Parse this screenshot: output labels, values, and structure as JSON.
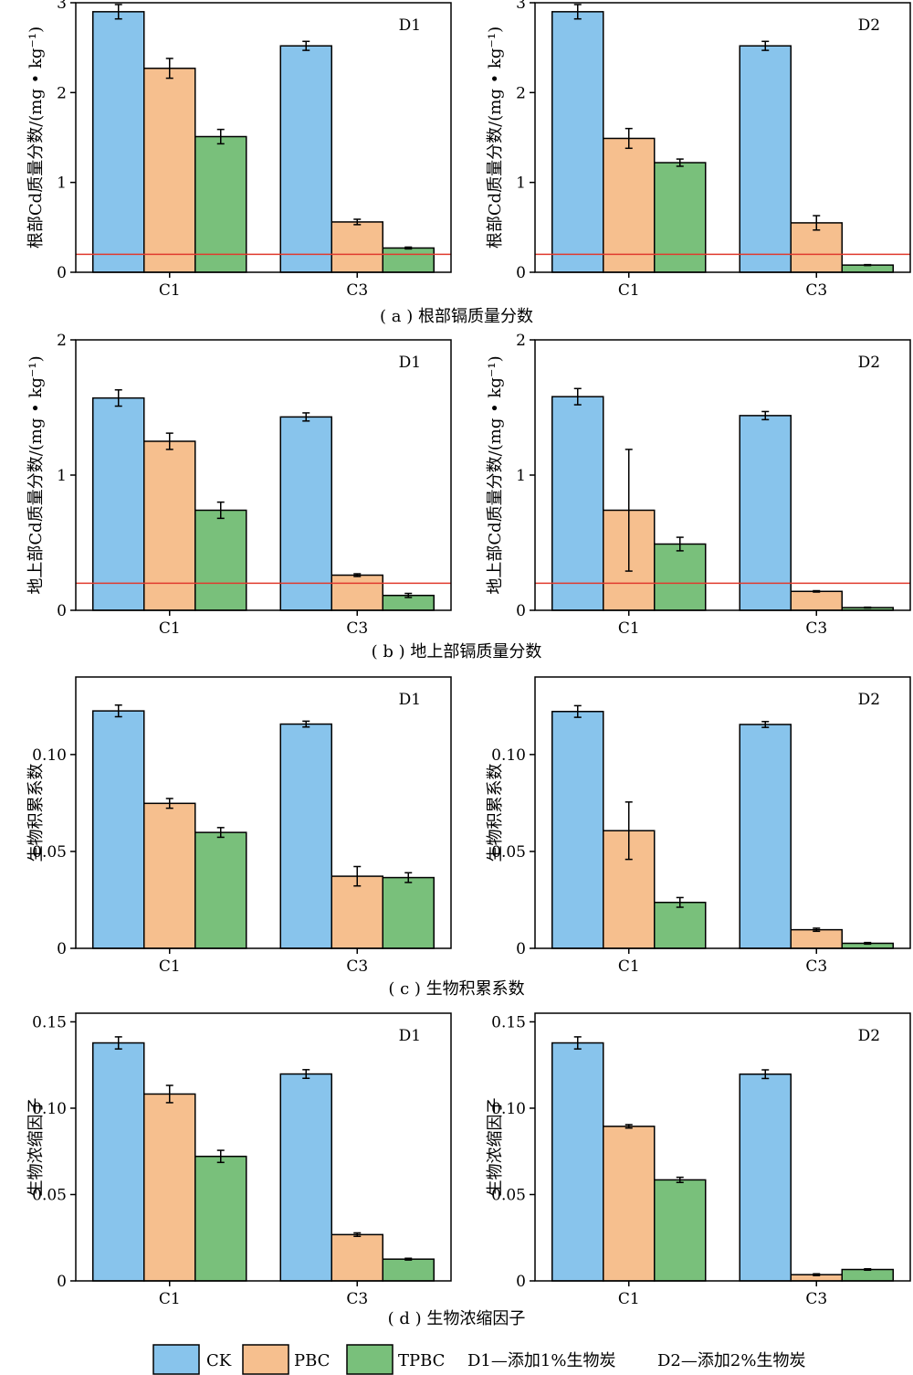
{
  "figure": {
    "legend": [
      {
        "key": "CK",
        "label": "CK",
        "color": "#88C4EC"
      },
      {
        "key": "PBC",
        "label": "PBC",
        "color": "#F6BF8E"
      },
      {
        "key": "TPBC",
        "label": "TPBC",
        "color": "#79C07B"
      }
    ],
    "legend_notes": [
      "D1—添加1%生物炭",
      "D2—添加2%生物炭"
    ],
    "reference_line_color": "#E03A2E"
  },
  "chart_data": [
    {
      "type": "bar",
      "row": "a",
      "panel": "D1",
      "caption": "( a ) 根部镉质量分数",
      "ylabel": "根部Cd质量分数/(mg • kg⁻¹)",
      "categories": [
        "C1",
        "C3"
      ],
      "ylim": [
        0,
        3
      ],
      "yticks": [
        0,
        1,
        2,
        3
      ],
      "ytick_labels": [
        "0",
        "1",
        "2",
        "3"
      ],
      "reference_line": 0.2,
      "series": [
        {
          "name": "CK",
          "values": [
            2.9,
            2.52
          ],
          "errors": [
            0.08,
            0.05
          ]
        },
        {
          "name": "PBC",
          "values": [
            2.27,
            0.56
          ],
          "errors": [
            0.11,
            0.03
          ]
        },
        {
          "name": "TPBC",
          "values": [
            1.51,
            0.27
          ],
          "errors": [
            0.08,
            0.01
          ]
        }
      ]
    },
    {
      "type": "bar",
      "row": "a",
      "panel": "D2",
      "ylabel": "根部Cd质量分数/(mg • kg⁻¹)",
      "categories": [
        "C1",
        "C3"
      ],
      "ylim": [
        0,
        3
      ],
      "yticks": [
        0,
        1,
        2,
        3
      ],
      "ytick_labels": [
        "0",
        "1",
        "2",
        "3"
      ],
      "reference_line": 0.2,
      "series": [
        {
          "name": "CK",
          "values": [
            2.9,
            2.52
          ],
          "errors": [
            0.08,
            0.05
          ]
        },
        {
          "name": "PBC",
          "values": [
            1.49,
            0.55
          ],
          "errors": [
            0.11,
            0.08
          ]
        },
        {
          "name": "TPBC",
          "values": [
            1.22,
            0.08
          ],
          "errors": [
            0.04,
            0.005
          ]
        }
      ]
    },
    {
      "type": "bar",
      "row": "b",
      "panel": "D1",
      "caption": "( b ) 地上部镉质量分数",
      "ylabel": "地上部Cd质量分数/(mg • kg⁻¹)",
      "categories": [
        "C1",
        "C3"
      ],
      "ylim": [
        0,
        2
      ],
      "yticks": [
        0,
        1,
        2
      ],
      "ytick_labels": [
        "0",
        "1",
        "2"
      ],
      "reference_line": 0.2,
      "series": [
        {
          "name": "CK",
          "values": [
            1.57,
            1.43
          ],
          "errors": [
            0.06,
            0.03
          ]
        },
        {
          "name": "PBC",
          "values": [
            1.25,
            0.26
          ],
          "errors": [
            0.06,
            0.01
          ]
        },
        {
          "name": "TPBC",
          "values": [
            0.74,
            0.11
          ],
          "errors": [
            0.06,
            0.015
          ]
        }
      ]
    },
    {
      "type": "bar",
      "row": "b",
      "panel": "D2",
      "ylabel": "地上部Cd质量分数/(mg • kg⁻¹)",
      "categories": [
        "C1",
        "C3"
      ],
      "ylim": [
        0,
        2
      ],
      "yticks": [
        0,
        1,
        2
      ],
      "ytick_labels": [
        "0",
        "1",
        "2"
      ],
      "reference_line": 0.2,
      "series": [
        {
          "name": "CK",
          "values": [
            1.58,
            1.44
          ],
          "errors": [
            0.06,
            0.03
          ]
        },
        {
          "name": "PBC",
          "values": [
            0.74,
            0.14
          ],
          "errors": [
            0.45,
            0.005
          ]
        },
        {
          "name": "TPBC",
          "values": [
            0.49,
            0.02
          ],
          "errors": [
            0.05,
            0.003
          ]
        }
      ]
    },
    {
      "type": "bar",
      "row": "c",
      "panel": "D1",
      "caption": "( c ) 生物积累系数",
      "ylabel": "生物积累系数",
      "categories": [
        "C1",
        "C3"
      ],
      "ylim": [
        0,
        0.14
      ],
      "yticks": [
        0,
        0.05,
        0.1
      ],
      "ytick_labels": [
        "0",
        "0.05",
        "0.10"
      ],
      "series": [
        {
          "name": "CK",
          "values": [
            0.1225,
            0.1157
          ],
          "errors": [
            0.003,
            0.0015
          ]
        },
        {
          "name": "PBC",
          "values": [
            0.0748,
            0.0372
          ],
          "errors": [
            0.0025,
            0.005
          ]
        },
        {
          "name": "TPBC",
          "values": [
            0.0598,
            0.0365
          ],
          "errors": [
            0.0025,
            0.0025
          ]
        }
      ]
    },
    {
      "type": "bar",
      "row": "c",
      "panel": "D2",
      "ylabel": "生物积累系数",
      "categories": [
        "C1",
        "C3"
      ],
      "ylim": [
        0,
        0.14
      ],
      "yticks": [
        0,
        0.05,
        0.1
      ],
      "ytick_labels": [
        "0",
        "0.05",
        "0.10"
      ],
      "series": [
        {
          "name": "CK",
          "values": [
            0.1222,
            0.1155
          ],
          "errors": [
            0.003,
            0.0015
          ]
        },
        {
          "name": "PBC",
          "values": [
            0.0607,
            0.0096
          ],
          "errors": [
            0.0148,
            0.0008
          ]
        },
        {
          "name": "TPBC",
          "values": [
            0.0237,
            0.0026
          ],
          "errors": [
            0.0025,
            0.0004
          ]
        }
      ]
    },
    {
      "type": "bar",
      "row": "d",
      "panel": "D1",
      "caption": "( d ) 生物浓缩因子",
      "ylabel": "生物浓缩因子",
      "categories": [
        "C1",
        "C3"
      ],
      "ylim": [
        0,
        0.155
      ],
      "yticks": [
        0,
        0.05,
        0.1,
        0.15
      ],
      "ytick_labels": [
        "0",
        "0.05",
        "0.10",
        "0.15"
      ],
      "series": [
        {
          "name": "CK",
          "values": [
            0.1378,
            0.1198
          ],
          "errors": [
            0.0035,
            0.0025
          ]
        },
        {
          "name": "PBC",
          "values": [
            0.1082,
            0.0268
          ],
          "errors": [
            0.005,
            0.001
          ]
        },
        {
          "name": "TPBC",
          "values": [
            0.0721,
            0.0126
          ],
          "errors": [
            0.0035,
            0.0005
          ]
        }
      ]
    },
    {
      "type": "bar",
      "row": "d",
      "panel": "D2",
      "ylabel": "生物浓缩因子",
      "categories": [
        "C1",
        "C3"
      ],
      "ylim": [
        0,
        0.155
      ],
      "yticks": [
        0,
        0.05,
        0.1,
        0.15
      ],
      "ytick_labels": [
        "0",
        "0.05",
        "0.10",
        "0.15"
      ],
      "series": [
        {
          "name": "CK",
          "values": [
            0.1378,
            0.1197
          ],
          "errors": [
            0.0035,
            0.0025
          ]
        },
        {
          "name": "PBC",
          "values": [
            0.0895,
            0.0036
          ],
          "errors": [
            0.001,
            0.0005
          ]
        },
        {
          "name": "TPBC",
          "values": [
            0.0585,
            0.0066
          ],
          "errors": [
            0.0015,
            0.0004
          ]
        }
      ]
    }
  ]
}
